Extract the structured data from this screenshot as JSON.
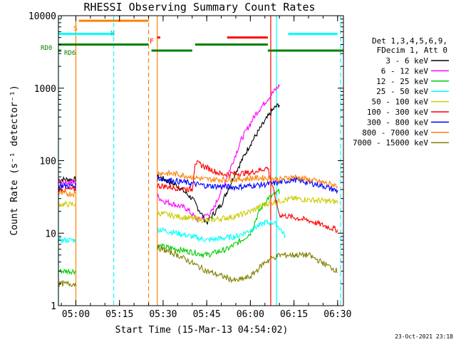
{
  "chart_data": {
    "type": "line",
    "title": "RHESSI Observing Summary Count Rates",
    "xlabel": "Start Time (15-Mar-13 04:54:02)",
    "ylabel": "Count Rate (s⁻¹ detector⁻¹)",
    "y_scale": "log",
    "ylim": [
      1,
      10000
    ],
    "xlim": [
      "04:54",
      "06:32"
    ],
    "x_ticks": [
      "05:00",
      "05:15",
      "05:30",
      "05:45",
      "06:00",
      "06:15",
      "06:30"
    ],
    "y_ticks": [
      "1",
      "10",
      "100",
      "1000",
      "10000"
    ],
    "grid": false,
    "legend_position": "right",
    "legend_header": [
      "Det 1,3,4,5,6,9,",
      "FDecim 1, Att 0"
    ],
    "series": [
      {
        "name": "3 - 6 keV",
        "color": "#000000",
        "points": [
          [
            "04:54",
            55
          ],
          [
            "05:00",
            55
          ],
          [
            "05:25",
            70
          ],
          [
            "05:35",
            45
          ],
          [
            "05:40",
            30
          ],
          [
            "05:45",
            14
          ],
          [
            "05:50",
            25
          ],
          [
            "05:55",
            70
          ],
          [
            "06:00",
            170
          ],
          [
            "06:05",
            350
          ],
          [
            "06:08",
            520
          ],
          [
            "06:10",
            600
          ]
        ]
      },
      {
        "name": "6 - 12 keV",
        "color": "#ff00ff",
        "points": [
          [
            "04:54",
            50
          ],
          [
            "05:00",
            50
          ],
          [
            "05:25",
            40
          ],
          [
            "05:30",
            28
          ],
          [
            "05:38",
            22
          ],
          [
            "05:42",
            15
          ],
          [
            "05:47",
            20
          ],
          [
            "05:52",
            60
          ],
          [
            "05:57",
            200
          ],
          [
            "06:02",
            450
          ],
          [
            "06:07",
            800
          ],
          [
            "06:10",
            1100
          ]
        ]
      },
      {
        "name": "12 - 25 keV",
        "color": "#00cc00",
        "points": [
          [
            "04:54",
            3
          ],
          [
            "05:00",
            3
          ],
          [
            "05:25",
            7
          ],
          [
            "05:35",
            6
          ],
          [
            "05:45",
            5
          ],
          [
            "05:52",
            6
          ],
          [
            "05:57",
            8
          ],
          [
            "06:00",
            10
          ],
          [
            "06:03",
            20
          ],
          [
            "06:06",
            30
          ],
          [
            "06:10",
            38
          ]
        ]
      },
      {
        "name": "25 - 50 keV",
        "color": "#00ffff",
        "points": [
          [
            "04:54",
            8
          ],
          [
            "05:00",
            8
          ],
          [
            "05:25",
            12
          ],
          [
            "05:35",
            10
          ],
          [
            "05:45",
            8
          ],
          [
            "05:55",
            9
          ],
          [
            "06:00",
            11
          ],
          [
            "06:05",
            14
          ],
          [
            "06:08",
            14
          ],
          [
            "06:10",
            12
          ],
          [
            "06:12",
            9
          ]
        ]
      },
      {
        "name": "50 - 100 keV",
        "color": "#cccc00",
        "points": [
          [
            "04:54",
            25
          ],
          [
            "05:00",
            25
          ],
          [
            "05:25",
            20
          ],
          [
            "05:35",
            17
          ],
          [
            "05:45",
            15
          ],
          [
            "05:55",
            17
          ],
          [
            "06:00",
            20
          ],
          [
            "06:05",
            25
          ],
          [
            "06:10",
            28
          ],
          [
            "06:15",
            30
          ],
          [
            "06:25",
            28
          ],
          [
            "06:30",
            27
          ]
        ]
      },
      {
        "name": "100 - 300 keV",
        "color": "#ff0000",
        "points": [
          [
            "04:54",
            40
          ],
          [
            "05:00",
            40
          ],
          [
            "05:25",
            47
          ],
          [
            "05:35",
            42
          ],
          [
            "05:40",
            40
          ],
          [
            "05:41",
            95
          ],
          [
            "05:50",
            65
          ],
          [
            "06:00",
            68
          ],
          [
            "06:06",
            80
          ],
          [
            "06:10",
            18
          ],
          [
            "06:20",
            15
          ],
          [
            "06:30",
            11
          ]
        ]
      },
      {
        "name": "300 - 800 keV",
        "color": "#0000ff",
        "points": [
          [
            "04:54",
            45
          ],
          [
            "05:00",
            45
          ],
          [
            "05:25",
            60
          ],
          [
            "05:35",
            52
          ],
          [
            "05:45",
            45
          ],
          [
            "05:55",
            43
          ],
          [
            "06:00",
            45
          ],
          [
            "06:05",
            47
          ],
          [
            "06:10",
            50
          ],
          [
            "06:15",
            55
          ],
          [
            "06:25",
            45
          ],
          [
            "06:30",
            38
          ]
        ]
      },
      {
        "name": "800 - 7000 keV",
        "color": "#ff8000",
        "points": [
          [
            "04:54",
            35
          ],
          [
            "05:00",
            35
          ],
          [
            "05:25",
            70
          ],
          [
            "05:35",
            65
          ],
          [
            "05:45",
            55
          ],
          [
            "05:55",
            55
          ],
          [
            "06:00",
            57
          ],
          [
            "06:05",
            58
          ],
          [
            "06:10",
            55
          ],
          [
            "06:15",
            60
          ],
          [
            "06:25",
            50
          ],
          [
            "06:30",
            45
          ]
        ]
      },
      {
        "name": "7000 - 15000 keV",
        "color": "#808000",
        "points": [
          [
            "04:54",
            2
          ],
          [
            "05:00",
            2
          ],
          [
            "05:25",
            7
          ],
          [
            "05:35",
            5
          ],
          [
            "05:45",
            3
          ],
          [
            "05:55",
            2.2
          ],
          [
            "06:00",
            2.5
          ],
          [
            "06:05",
            4
          ],
          [
            "06:10",
            5
          ],
          [
            "06:20",
            5
          ],
          [
            "06:30",
            3
          ]
        ]
      }
    ],
    "flag_labels": {
      "s": "S",
      "n": "N",
      "f": "F",
      "rd0": "RD0",
      "rd6": "RD6"
    },
    "flags": [
      {
        "label": "S",
        "color": "#ff8000",
        "level": 8500,
        "ranges": [
          [
            "05:01",
            "05:25"
          ]
        ]
      },
      {
        "label": "N",
        "color": "#00ffff",
        "level": 5600,
        "ranges": [
          [
            "04:54",
            "05:13"
          ],
          [
            "06:13",
            "06:30"
          ]
        ]
      },
      {
        "label": "F",
        "color": "#ff0000",
        "level": 5000,
        "ranges": [
          [
            "05:28",
            "05:29"
          ],
          [
            "05:52",
            "06:06"
          ]
        ]
      },
      {
        "label": "RD0",
        "color": "#008000",
        "level": 4000,
        "ranges": [
          [
            "04:54",
            "05:25"
          ],
          [
            "05:41",
            "06:06"
          ]
        ]
      },
      {
        "label": "RD6",
        "color": "#008000",
        "level": 3300,
        "ranges": [
          [
            "04:54",
            "04:55"
          ],
          [
            "05:26",
            "05:40"
          ],
          [
            "06:06",
            "06:32"
          ]
        ]
      }
    ],
    "vlines": [
      {
        "time": "04:54",
        "color": "#00ffff",
        "style": "solid"
      },
      {
        "time": "05:00",
        "color": "#ff8000",
        "style": "solid"
      },
      {
        "time": "05:13",
        "color": "#00ffff",
        "style": "dashed"
      },
      {
        "time": "05:25",
        "color": "#ff8000",
        "style": "dashed"
      },
      {
        "time": "05:28",
        "color": "#ff8000",
        "style": "solid"
      },
      {
        "time": "06:07",
        "color": "#ff0000",
        "style": "solid"
      },
      {
        "time": "06:09",
        "color": "#00ffff",
        "style": "solid"
      },
      {
        "time": "06:31",
        "color": "#00ffff",
        "style": "dashed"
      }
    ],
    "gaps": [
      [
        "05:00",
        "05:28"
      ]
    ]
  },
  "footer": {
    "timestamp": "23-Oct-2021 23:18"
  }
}
